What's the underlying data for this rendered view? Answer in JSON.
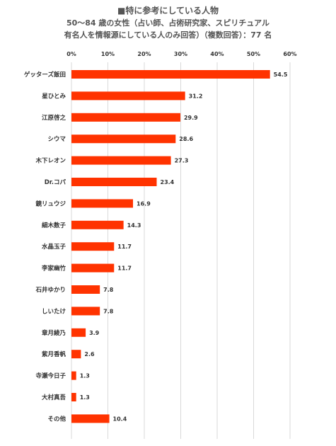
{
  "title_lines": [
    "■特に参考にしている人物",
    "50～84 歳の女性（占い師、占術研究家、スピリチュアル",
    "有名人を情報源にしている人のみ回答）（複数回答）：77 名"
  ],
  "colors": {
    "bar": "#ff3300",
    "grid": "#d9d9d9",
    "text": "#333333"
  },
  "chart_data": {
    "type": "bar",
    "orientation": "horizontal",
    "unit": "%",
    "categories": [
      "ゲッターズ飯田",
      "星ひとみ",
      "江原啓之",
      "シウマ",
      "木下レオン",
      "Dr.コパ",
      "鏡リュウジ",
      "細木数子",
      "水晶玉子",
      "李家幽竹",
      "石井ゆかり",
      "しいたけ",
      "章月綾乃",
      "紫月香帆",
      "寺瀬今日子",
      "大村真吾",
      "その他"
    ],
    "values": [
      54.5,
      31.2,
      29.9,
      28.6,
      27.3,
      23.4,
      16.9,
      14.3,
      11.7,
      11.7,
      7.8,
      7.8,
      3.9,
      2.6,
      1.3,
      1.3,
      10.4
    ],
    "value_labels": [
      "54.5",
      "31.2",
      "29.9",
      "28.6",
      "27.3",
      "23.4",
      "16.9",
      "14.3",
      "11.7",
      "11.7",
      "7.8",
      "7.8",
      "3.9",
      "2.6",
      "1.3",
      "1.3",
      "10.4"
    ],
    "xlim": [
      0,
      60
    ],
    "ticks": [
      0,
      10,
      20,
      30,
      40,
      50,
      60
    ],
    "tick_labels": [
      "0%",
      "10%",
      "20%",
      "30%",
      "40%",
      "50%",
      "60%"
    ],
    "grid": true,
    "legend": "none"
  }
}
